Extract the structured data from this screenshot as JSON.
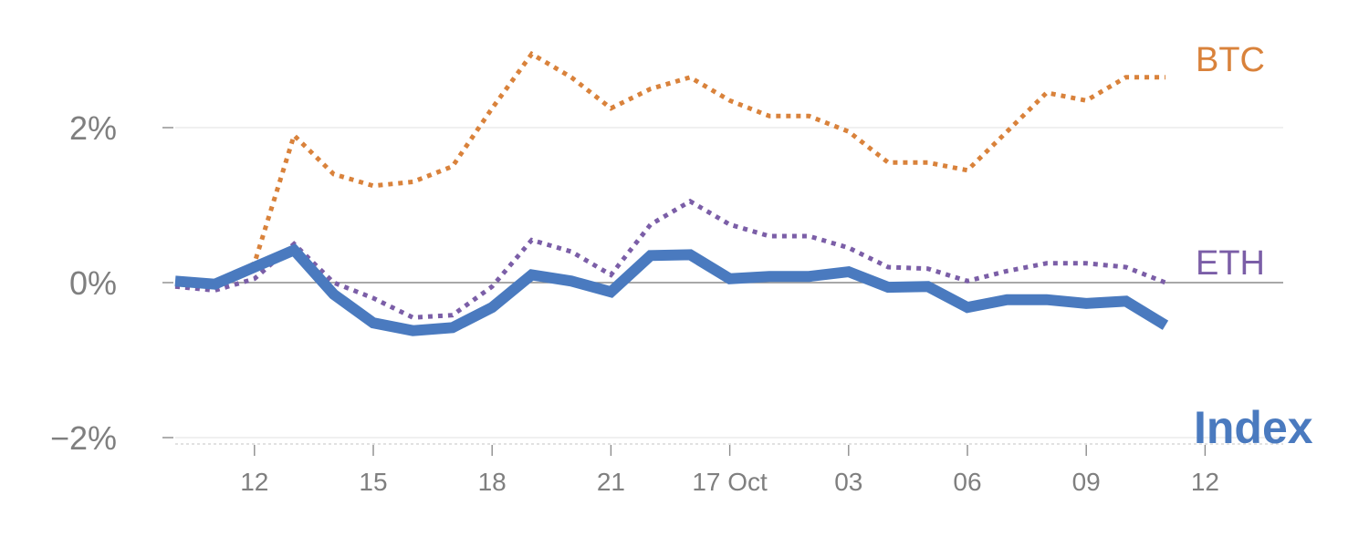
{
  "chart_data": {
    "type": "line",
    "title": "",
    "xlabel": "",
    "ylabel": "",
    "ylim": [
      -2,
      3
    ],
    "y_ticks": [
      {
        "value": 2,
        "label": "2%"
      },
      {
        "value": 0,
        "label": "0%"
      },
      {
        "value": -2,
        "label": "−2%"
      }
    ],
    "x_tick_labels": [
      "12",
      "15",
      "18",
      "21",
      "17 Oct",
      "03",
      "06",
      "09",
      "12"
    ],
    "x_tick_positions": [
      2,
      5,
      8,
      11,
      14,
      17,
      20,
      23,
      26
    ],
    "x_range": [
      0,
      28
    ],
    "x": [
      0,
      1,
      2,
      3,
      4,
      5,
      6,
      7,
      8,
      9,
      10,
      11,
      12,
      13,
      14,
      15,
      16,
      17,
      18,
      19,
      20,
      21,
      22,
      23,
      24,
      25
    ],
    "grid": true,
    "legend": "direct labels at right end of lines",
    "series": [
      {
        "name": "BTC",
        "color": "#d9823b",
        "style": "dotted",
        "values": [
          -0.05,
          -0.05,
          0.25,
          1.9,
          1.4,
          1.25,
          1.3,
          1.5,
          2.25,
          2.95,
          2.65,
          2.25,
          2.5,
          2.65,
          2.35,
          2.15,
          2.15,
          1.95,
          1.55,
          1.55,
          1.45,
          1.95,
          2.45,
          2.35,
          2.65,
          2.65
        ]
      },
      {
        "name": "ETH",
        "color": "#7b5ea7",
        "style": "dotted",
        "values": [
          -0.05,
          -0.1,
          0.05,
          0.5,
          0.0,
          -0.2,
          -0.45,
          -0.42,
          -0.05,
          0.55,
          0.4,
          0.1,
          0.75,
          1.05,
          0.75,
          0.6,
          0.6,
          0.45,
          0.2,
          0.18,
          0.02,
          0.15,
          0.25,
          0.25,
          0.2,
          0.0
        ]
      },
      {
        "name": "Index",
        "color": "#4a7abf",
        "style": "solid",
        "values": [
          0.02,
          -0.02,
          0.2,
          0.42,
          -0.15,
          -0.52,
          -0.62,
          -0.58,
          -0.32,
          0.1,
          0.02,
          -0.12,
          0.35,
          0.36,
          0.05,
          0.08,
          0.08,
          0.14,
          -0.06,
          -0.05,
          -0.32,
          -0.22,
          -0.22,
          -0.27,
          -0.24,
          -0.55
        ]
      }
    ]
  }
}
